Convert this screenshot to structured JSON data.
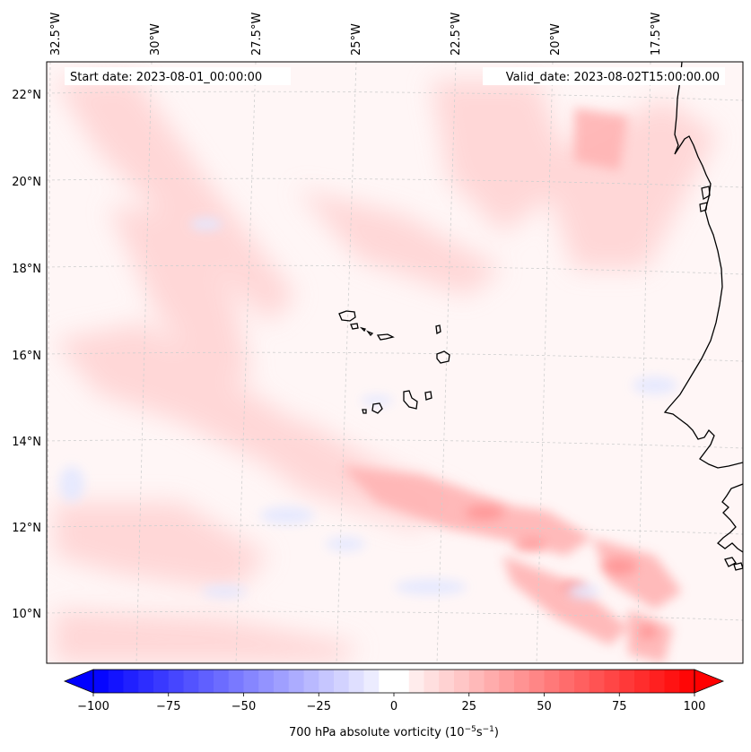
{
  "map": {
    "start_date": "Start date: 2023-08-01_00:00:00",
    "valid_date": "Valid_date: 2023-08-02T15:00:00.00",
    "lon_labels": [
      "32.5°W",
      "30°W",
      "27.5°W",
      "25°W",
      "22.5°W",
      "20°W",
      "17.5°W"
    ],
    "lat_labels": [
      "22°N",
      "20°N",
      "18°N",
      "16°N",
      "14°N",
      "12°N",
      "10°N"
    ],
    "features": [
      "Cape Verde islands",
      "West African coastline (Senegal / Mauritania)"
    ]
  },
  "colorbar": {
    "ticks": [
      "−100",
      "−75",
      "−50",
      "−25",
      "0",
      "25",
      "50",
      "75",
      "100"
    ],
    "min": -100,
    "max": 100,
    "label_main": "700 hPa absolute vorticity (10",
    "label_exp1": "−5",
    "label_mid": "s",
    "label_exp2": "−1",
    "label_end": ")",
    "colors": {
      "negative": "#0000ff",
      "zero": "#ffffff",
      "positive": "#ff0000"
    }
  }
}
